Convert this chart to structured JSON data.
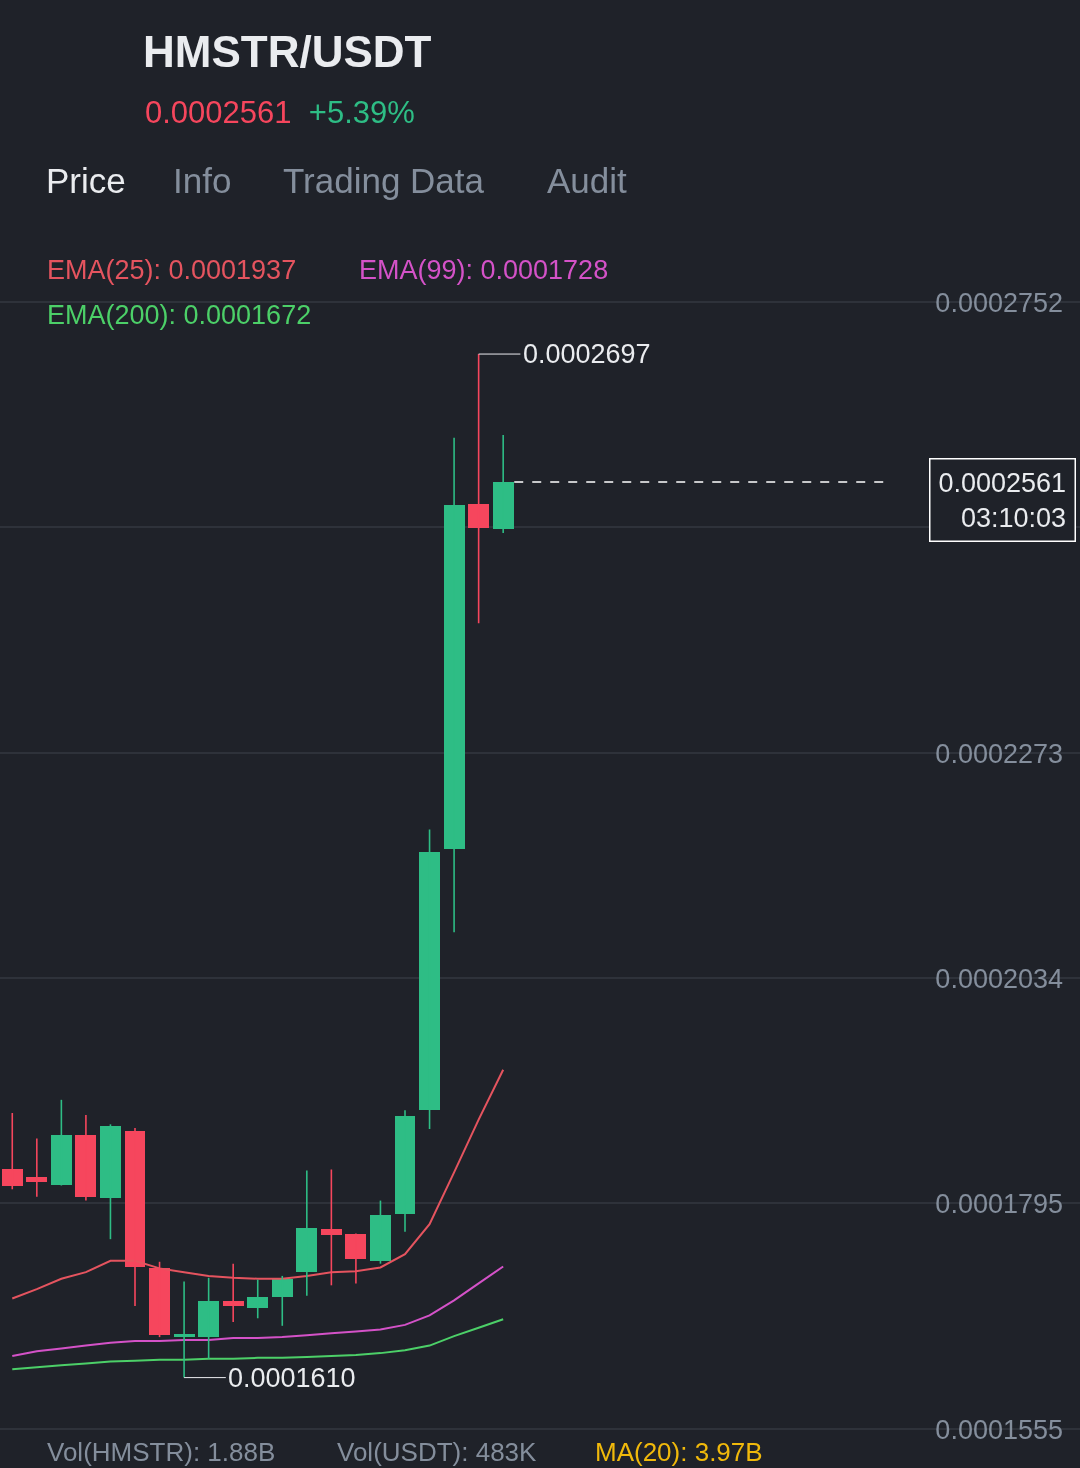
{
  "chart_data": {
    "type": "candlestick",
    "title": "HMSTR/USDT",
    "subtitle": "0.0002561 +5.39%",
    "categories": [
      null,
      null,
      null,
      null,
      null,
      null,
      null,
      null,
      null,
      null,
      null,
      null,
      null,
      null,
      null,
      null,
      null,
      null,
      null,
      null,
      null,
      null,
      null,
      null,
      null,
      null,
      null,
      null,
      null,
      null,
      null,
      null,
      null,
      null,
      null,
      null,
      null,
      null,
      null,
      null,
      null,
      null,
      null,
      null
    ],
    "ohlc": [
      [
        0.0001832,
        0.0001891,
        0.000181,
        0.0001813
      ],
      [
        0.0001823,
        0.0001864,
        0.0001802,
        0.0001818
      ],
      [
        0.0001815,
        0.0001905,
        0.0001814,
        0.0001868
      ],
      [
        0.0001868,
        0.0001889,
        0.0001798,
        0.0001802
      ],
      [
        0.0001801,
        0.0001879,
        0.0001757,
        0.0001877
      ],
      [
        0.0001872,
        0.0001875,
        0.0001686,
        0.0001727
      ],
      [
        0.0001726,
        0.0001733,
        0.0001653,
        0.0001655
      ],
      [
        0.0001654,
        0.0001712,
        0.000161,
        0.0001656
      ],
      [
        0.0001653,
        0.0001716,
        0.000163,
        0.0001691
      ],
      [
        0.0001691,
        0.0001731,
        0.0001669,
        0.0001686
      ],
      [
        0.0001684,
        0.0001714,
        0.0001673,
        0.0001696
      ],
      [
        0.0001696,
        0.0001718,
        0.0001665,
        0.0001715
      ],
      [
        0.0001722,
        0.000183,
        0.0001697,
        0.0001769
      ],
      [
        0.0001768,
        0.0001831,
        0.0001708,
        0.0001761
      ],
      [
        0.0001762,
        0.0001763,
        0.000171,
        0.0001736
      ],
      [
        0.0001734,
        0.0001798,
        0.0001731,
        0.0001783
      ],
      [
        0.0001784,
        0.0001894,
        0.0001765,
        0.0001888
      ],
      [
        0.0001894,
        0.0002192,
        0.0001874,
        0.0002168
      ],
      [
        0.0002171,
        0.0002608,
        0.0002083,
        0.0002537
      ],
      [
        0.0002538,
        0.0002697,
        0.0002411,
        0.0002512
      ],
      [
        0.0002511,
        0.0002611,
        0.0002507,
        0.0002561
      ],
      null,
      null,
      null,
      null,
      null,
      null,
      null,
      null,
      null,
      null,
      null,
      null,
      null,
      null,
      null,
      null,
      null,
      null,
      null,
      null,
      null,
      null,
      null
    ],
    "series": [
      {
        "name": "EMA(25): 0.0001937",
        "type": "line",
        "color": "#e5545f",
        "values": [
          0.0001694,
          0.0001704,
          0.0001715,
          0.0001722,
          0.0001734,
          0.0001734,
          0.0001726,
          0.0001722,
          0.0001718,
          0.0001716,
          0.0001715,
          0.0001715,
          0.0001718,
          0.0001722,
          0.0001723,
          0.0001727,
          0.0001741,
          0.0001773,
          0.0001828,
          0.0001884,
          0.0001937,
          null,
          null,
          null,
          null,
          null,
          null,
          null,
          null,
          null,
          null,
          null,
          null,
          null,
          null,
          null,
          null,
          null,
          null,
          null,
          null,
          null,
          null,
          null
        ]
      },
      {
        "name": "EMA(99): 0.0001728",
        "type": "line",
        "color": "#d452c8",
        "values": [
          0.0001633,
          0.0001638,
          0.0001641,
          0.0001644,
          0.0001647,
          0.0001649,
          0.0001649,
          0.000165,
          0.000165,
          0.0001652,
          0.0001652,
          0.0001653,
          0.0001655,
          0.0001657,
          0.0001659,
          0.0001661,
          0.0001666,
          0.0001676,
          0.0001692,
          0.000171,
          0.0001728,
          null,
          null,
          null,
          null,
          null,
          null,
          null,
          null,
          null,
          null,
          null,
          null,
          null,
          null,
          null,
          null,
          null,
          null,
          null,
          null,
          null,
          null,
          null
        ]
      },
      {
        "name": "EMA(200): 0.0001672",
        "type": "line",
        "color": "#4cd068",
        "values": [
          0.0001619,
          0.0001621,
          0.0001623,
          0.0001625,
          0.0001627,
          0.0001628,
          0.0001629,
          0.0001629,
          0.000163,
          0.000163,
          0.0001631,
          0.0001631,
          0.0001632,
          0.0001633,
          0.0001634,
          0.0001636,
          0.0001639,
          0.0001644,
          0.0001654,
          0.0001663,
          0.0001672,
          null,
          null,
          null,
          null,
          null,
          null,
          null,
          null,
          null,
          null,
          null,
          null,
          null,
          null,
          null,
          null,
          null,
          null,
          null,
          null,
          null,
          null,
          null
        ]
      }
    ],
    "ylim": [
      0.0001514,
      0.0003073
    ],
    "yticks": [
      0.0001555,
      0.0001795,
      0.0002034,
      0.0002273,
      {
        "value": 0.0002513,
        "label": null
      },
      0.0002752
    ],
    "grid": "y",
    "tick_labels": "y",
    "ref_lines": [
      {
        "axis": "y",
        "value": 0.0002561,
        "label": "0.0002561\n03:10:03",
        "line_style": "dashed",
        "color": "#ffffff"
      }
    ],
    "annotations": [
      "0.0002697",
      "0.0001610",
      "Price",
      "Info",
      "Trading Data",
      "Audit",
      "Vol(HMSTR): 1.88B",
      "Vol(USDT): 483K",
      "MA(20): 3.97B"
    ]
  }
}
